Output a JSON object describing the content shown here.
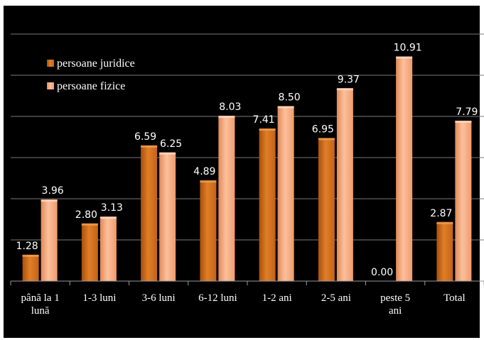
{
  "chart_data": {
    "type": "bar",
    "categories": [
      [
        "până la 1",
        "lună"
      ],
      [
        "1-3 luni"
      ],
      [
        "3-6 luni"
      ],
      [
        "6-12 luni"
      ],
      [
        "1-2 ani"
      ],
      [
        "2-5 ani"
      ],
      [
        "peste 5",
        "ani"
      ],
      [
        "Total"
      ]
    ],
    "series": [
      {
        "name": "persoane juridice",
        "values": [
          1.28,
          2.8,
          6.59,
          4.89,
          7.41,
          6.95,
          0.0,
          2.87
        ],
        "labels": [
          "1.28",
          "2.80",
          "6.59",
          "4.89",
          "7.41",
          "6.95",
          "0.00",
          "2.87"
        ],
        "color": "#d8741f"
      },
      {
        "name": "persoane fizice",
        "values": [
          3.96,
          3.13,
          6.25,
          8.03,
          8.5,
          9.37,
          10.91,
          7.79
        ],
        "labels": [
          "3.96",
          "3.13",
          "6.25",
          "8.03",
          "8.50",
          "9.37",
          "10.91",
          "7.79"
        ],
        "color": "#f6a87c"
      }
    ],
    "ylim": [
      0,
      12
    ],
    "y_gridlines": [
      2,
      4,
      6,
      8,
      10,
      12
    ],
    "grid": true,
    "legend": "top-left",
    "background": "#000000",
    "gridline_color": "#7a7a7a"
  }
}
